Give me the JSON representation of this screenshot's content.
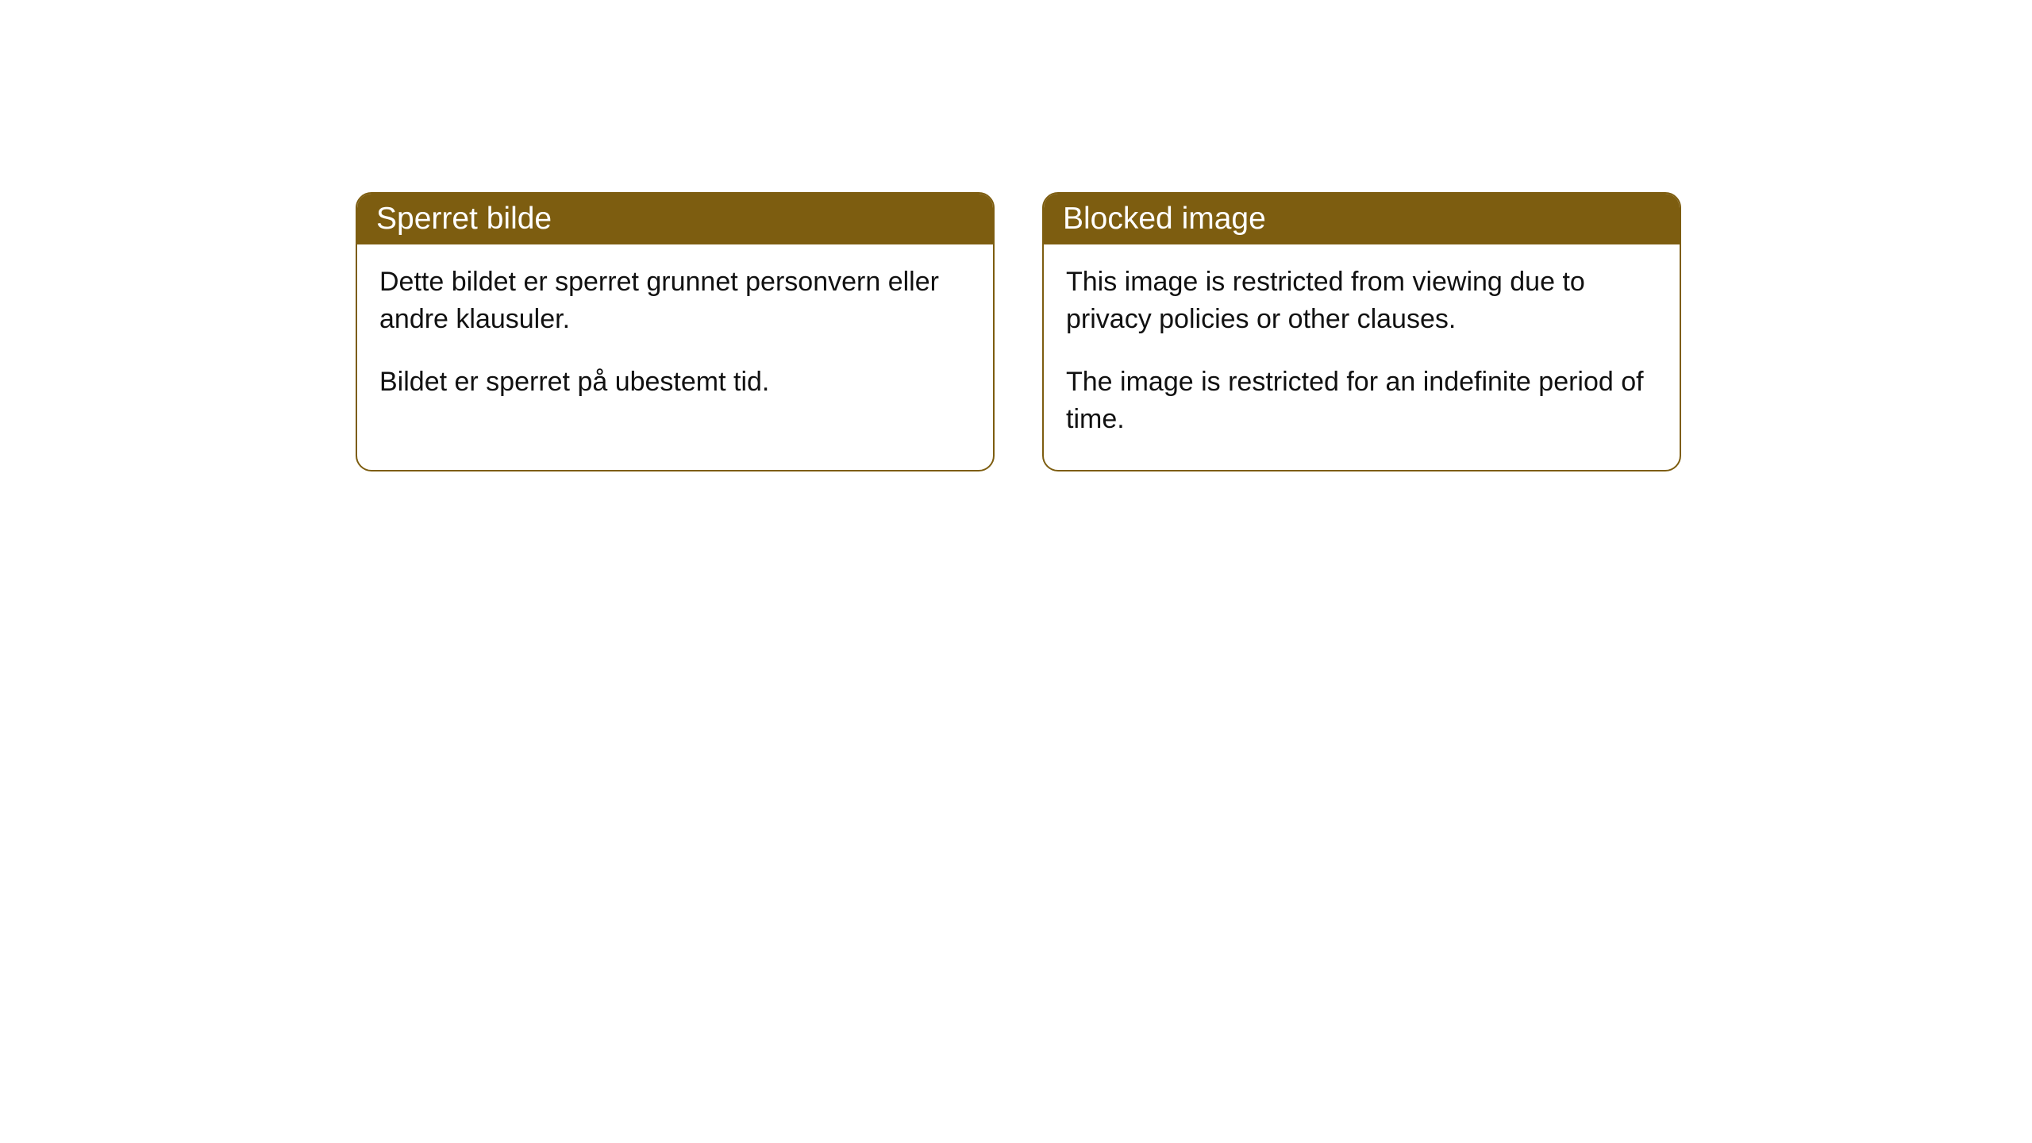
{
  "cards": [
    {
      "title": "Sperret bilde",
      "paragraph1": "Dette bildet er sperret grunnet personvern eller andre klausuler.",
      "paragraph2": "Bildet er sperret på ubestemt tid."
    },
    {
      "title": "Blocked image",
      "paragraph1": "This image is restricted from viewing due to privacy policies or other clauses.",
      "paragraph2": "The image is restricted for an indefinite period of time."
    }
  ],
  "styling": {
    "header_bg_color": "#7d5d10",
    "header_text_color": "#ffffff",
    "body_text_color": "#111111",
    "border_color": "#7d5d10",
    "card_bg_color": "#ffffff",
    "page_bg_color": "#ffffff",
    "border_radius": 20,
    "header_fontsize": 39,
    "body_fontsize": 34
  }
}
